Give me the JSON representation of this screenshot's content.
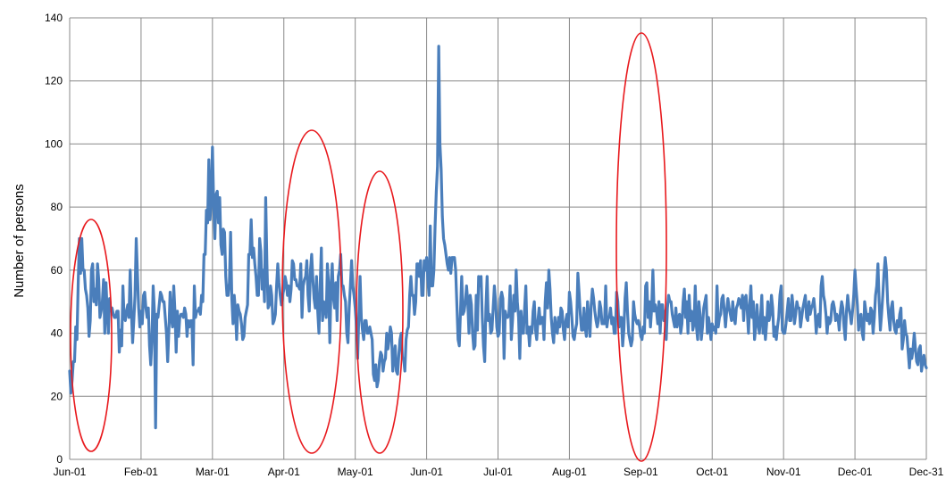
{
  "chart_data": {
    "type": "line",
    "ylabel": "Number of persons",
    "ylim": [
      0,
      140
    ],
    "y_ticks": [
      "0",
      "20",
      "40",
      "60",
      "80",
      "100",
      "120",
      "140"
    ],
    "x_tick_labels": [
      "Jun-01",
      "Feb-01",
      "Mar-01",
      "Apr-01",
      "May-01",
      "Jun-01",
      "Jul-01",
      "Aug-01",
      "Sep-01",
      "Oct-01",
      "Nov-01",
      "Dec-01",
      "Dec-31"
    ],
    "grid": true,
    "series_color": "#4a7ebb",
    "highlight_color": "#e8191d",
    "series": [
      {
        "values": [
          28,
          21,
          25,
          31,
          31,
          42,
          38,
          55,
          70,
          59,
          70,
          60,
          60,
          54,
          52,
          48,
          39,
          44,
          60,
          62,
          50,
          54,
          49,
          62,
          57,
          45,
          47,
          50,
          57,
          40,
          56,
          47,
          40,
          51,
          47,
          48,
          46,
          45,
          45,
          47,
          47,
          34,
          41,
          36,
          55,
          45,
          44,
          47,
          49,
          45,
          60,
          47,
          37,
          44,
          52,
          70,
          59,
          48,
          42,
          47,
          43,
          52,
          53,
          48,
          45,
          48,
          36,
          30,
          38,
          55,
          47,
          10,
          46,
          45,
          49,
          53,
          52,
          50,
          50,
          45,
          40,
          31,
          41,
          53,
          45,
          42,
          55,
          47,
          34,
          47,
          39,
          45,
          46,
          46,
          45,
          48,
          46,
          39,
          44,
          42,
          44,
          44,
          30,
          55,
          45,
          47,
          47,
          48,
          46,
          52,
          50,
          65,
          65,
          79,
          75,
          95,
          76,
          82,
          99,
          81,
          70,
          84,
          85,
          75,
          83,
          68,
          65,
          73,
          72,
          58,
          52,
          52,
          56,
          72,
          51,
          43,
          52,
          47,
          38,
          49,
          47,
          46,
          43,
          38,
          39,
          45,
          47,
          49,
          65,
          65,
          76,
          64,
          67,
          62,
          58,
          52,
          52,
          70,
          66,
          54,
          60,
          50,
          83,
          62,
          48,
          49,
          55,
          52,
          43,
          44,
          46,
          55,
          62,
          56,
          52,
          49,
          52,
          54,
          58,
          56,
          52,
          55,
          50,
          54,
          63,
          62,
          57,
          57,
          55,
          55,
          54,
          62,
          45,
          55,
          57,
          58,
          63,
          52,
          47,
          60,
          65,
          57,
          51,
          48,
          58,
          47,
          40,
          55,
          67,
          44,
          50,
          48,
          45,
          62,
          55,
          37,
          55,
          62,
          51,
          48,
          56,
          44,
          58,
          60,
          65,
          55,
          55,
          52,
          50,
          40,
          37,
          48,
          55,
          63,
          55,
          52,
          48,
          42,
          32,
          46,
          58,
          45,
          41,
          38,
          44,
          44,
          40,
          40,
          42,
          40,
          38,
          27,
          25,
          30,
          23,
          25,
          31,
          34,
          33,
          28,
          31,
          32,
          40,
          35,
          38,
          42,
          40,
          28,
          32,
          36,
          28,
          27,
          33,
          38,
          40,
          32,
          32,
          28,
          38,
          41,
          42,
          52,
          58,
          52,
          52,
          46,
          50,
          62,
          62,
          58,
          63,
          52,
          52,
          63,
          60,
          64,
          57,
          52,
          74,
          55,
          55,
          60,
          74,
          85,
          93,
          131,
          100,
          92,
          77,
          70,
          68,
          65,
          62,
          60,
          64,
          59,
          64,
          64,
          64,
          60,
          49,
          38,
          36,
          47,
          58,
          46,
          47,
          50,
          55,
          50,
          40,
          52,
          49,
          40,
          35,
          36,
          52,
          41,
          58,
          55,
          58,
          45,
          36,
          31,
          48,
          58,
          44,
          46,
          40,
          41,
          48,
          55,
          50,
          42,
          39,
          40,
          51,
          53,
          51,
          32,
          47,
          45,
          45,
          46,
          55,
          38,
          44,
          52,
          47,
          60,
          50,
          45,
          32,
          47,
          40,
          40,
          48,
          55,
          40,
          42,
          36,
          42,
          40,
          47,
          50,
          41,
          38,
          44,
          48,
          43,
          45,
          45,
          38,
          50,
          56,
          48,
          60,
          54,
          45,
          40,
          37,
          45,
          41,
          40,
          45,
          42,
          48,
          47,
          41,
          38,
          44,
          46,
          42,
          53,
          50,
          45,
          39,
          38,
          41,
          43,
          59,
          53,
          46,
          41,
          41,
          48,
          42,
          39,
          50,
          45,
          39,
          49,
          54,
          51,
          47,
          44,
          42,
          44,
          50,
          48,
          43,
          43,
          43,
          55,
          42,
          45,
          45,
          48,
          43,
          45,
          40,
          40,
          53,
          50,
          42,
          45,
          45,
          36,
          41,
          51,
          56,
          47,
          40,
          38,
          36,
          38,
          50,
          46,
          44,
          43,
          44,
          42,
          39,
          38,
          42,
          40,
          55,
          56,
          45,
          50,
          42,
          48,
          60,
          47,
          49,
          47,
          43,
          50,
          40,
          49,
          49,
          44,
          47,
          38,
          48,
          52,
          50,
          50,
          46,
          44,
          42,
          48,
          42,
          45,
          46,
          40,
          43,
          50,
          54,
          45,
          50,
          40,
          52,
          44,
          47,
          41,
          43,
          55,
          42,
          38,
          50,
          46,
          38,
          42,
          48,
          50,
          52,
          40,
          45,
          42,
          38,
          43,
          41,
          42,
          40,
          55,
          42,
          45,
          46,
          51,
          52,
          47,
          42,
          47,
          51,
          48,
          46,
          44,
          50,
          45,
          43,
          48,
          49,
          51,
          50,
          48,
          52,
          44,
          51,
          52,
          47,
          40,
          49,
          55,
          45,
          50,
          38,
          42,
          49,
          43,
          40,
          45,
          52,
          40,
          45,
          38,
          43,
          50,
          44,
          46,
          52,
          48,
          39,
          42,
          38,
          42,
          45,
          52,
          55,
          41,
          40,
          40,
          43,
          47,
          51,
          44,
          44,
          52,
          48,
          43,
          46,
          50,
          48,
          48,
          42,
          45,
          48,
          50,
          52,
          45,
          44,
          50,
          46,
          48,
          49,
          51,
          47,
          40,
          45,
          46,
          42,
          55,
          58,
          52,
          50,
          46,
          40,
          45,
          43,
          44,
          49,
          50,
          48,
          44,
          46,
          45,
          41,
          47,
          50,
          48,
          42,
          38,
          47,
          52,
          48,
          46,
          43,
          47,
          52,
          60,
          54,
          49,
          41,
          45,
          46,
          40,
          38,
          50,
          47,
          44,
          46,
          43,
          48,
          47,
          40,
          45,
          52,
          55,
          62,
          50,
          41,
          46,
          52,
          59,
          64,
          60,
          50,
          45,
          41,
          48,
          50,
          44,
          41,
          40,
          44,
          42,
          46,
          48,
          35,
          38,
          44,
          40,
          39,
          34,
          29,
          35,
          32,
          35,
          40,
          35,
          31,
          30,
          35,
          36,
          28,
          31,
          33,
          30,
          29
        ]
      }
    ],
    "highlights": [
      {
        "label": "ellipse-1",
        "x_range": [
          "Jun-01 start",
          "Jan-20"
        ],
        "y_range": [
          0,
          76
        ]
      },
      {
        "label": "ellipse-2",
        "x_range": [
          "Apr-01",
          "May-01"
        ],
        "y_range": [
          0,
          104
        ]
      },
      {
        "label": "ellipse-3",
        "x_range": [
          "May-01",
          "May-20"
        ],
        "y_range": [
          0,
          91
        ]
      },
      {
        "label": "ellipse-4",
        "x_range": [
          "Aug-25",
          "Sep-05"
        ],
        "y_range": [
          0,
          135
        ]
      }
    ]
  }
}
